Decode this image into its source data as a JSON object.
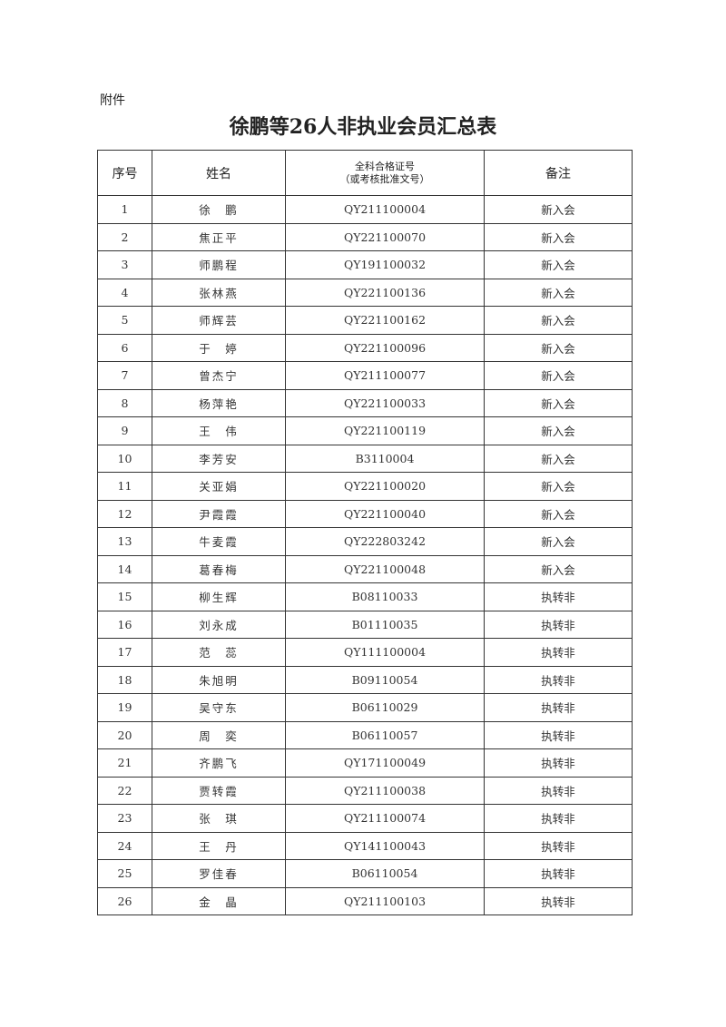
{
  "attachment_label": "附件",
  "title": "徐鹏等26人非执业会员汇总表",
  "table": {
    "headers": {
      "index": "序号",
      "name": "姓名",
      "cert_line1": "全科合格证号",
      "cert_line2": "（或考核批准文号）",
      "remark": "备注"
    },
    "rows": [
      {
        "no": "1",
        "name": "徐　鹏",
        "cert": "QY211100004",
        "remark": "新入会"
      },
      {
        "no": "2",
        "name": "焦正平",
        "cert": "QY221100070",
        "remark": "新入会"
      },
      {
        "no": "3",
        "name": "师鹏程",
        "cert": "QY191100032",
        "remark": "新入会"
      },
      {
        "no": "4",
        "name": "张林燕",
        "cert": "QY221100136",
        "remark": "新入会"
      },
      {
        "no": "5",
        "name": "师辉芸",
        "cert": "QY221100162",
        "remark": "新入会"
      },
      {
        "no": "6",
        "name": "于　婷",
        "cert": "QY221100096",
        "remark": "新入会"
      },
      {
        "no": "7",
        "name": "曾杰宁",
        "cert": "QY211100077",
        "remark": "新入会"
      },
      {
        "no": "8",
        "name": "杨萍艳",
        "cert": "QY221100033",
        "remark": "新入会"
      },
      {
        "no": "9",
        "name": "王　伟",
        "cert": "QY221100119",
        "remark": "新入会"
      },
      {
        "no": "10",
        "name": "李芳安",
        "cert": "B3110004",
        "remark": "新入会"
      },
      {
        "no": "11",
        "name": "关亚娟",
        "cert": "QY221100020",
        "remark": "新入会"
      },
      {
        "no": "12",
        "name": "尹霞霞",
        "cert": "QY221100040",
        "remark": "新入会"
      },
      {
        "no": "13",
        "name": "牛麦霞",
        "cert": "QY222803242",
        "remark": "新入会"
      },
      {
        "no": "14",
        "name": "葛春梅",
        "cert": "QY221100048",
        "remark": "新入会"
      },
      {
        "no": "15",
        "name": "柳生辉",
        "cert": "B08110033",
        "remark": "执转非"
      },
      {
        "no": "16",
        "name": "刘永成",
        "cert": "B01110035",
        "remark": "执转非"
      },
      {
        "no": "17",
        "name": "范　蕊",
        "cert": "QY111100004",
        "remark": "执转非"
      },
      {
        "no": "18",
        "name": "朱旭明",
        "cert": "B09110054",
        "remark": "执转非"
      },
      {
        "no": "19",
        "name": "吴守东",
        "cert": "B06110029",
        "remark": "执转非"
      },
      {
        "no": "20",
        "name": "周　奕",
        "cert": "B06110057",
        "remark": "执转非"
      },
      {
        "no": "21",
        "name": "齐鹏飞",
        "cert": "QY171100049",
        "remark": "执转非"
      },
      {
        "no": "22",
        "name": "贾转霞",
        "cert": "QY211100038",
        "remark": "执转非"
      },
      {
        "no": "23",
        "name": "张　琪",
        "cert": "QY211100074",
        "remark": "执转非"
      },
      {
        "no": "24",
        "name": "王　丹",
        "cert": "QY141100043",
        "remark": "执转非"
      },
      {
        "no": "25",
        "name": "罗佳春",
        "cert": "B06110054",
        "remark": "执转非"
      },
      {
        "no": "26",
        "name": "金　晶",
        "cert": "QY211100103",
        "remark": "执转非"
      }
    ]
  }
}
